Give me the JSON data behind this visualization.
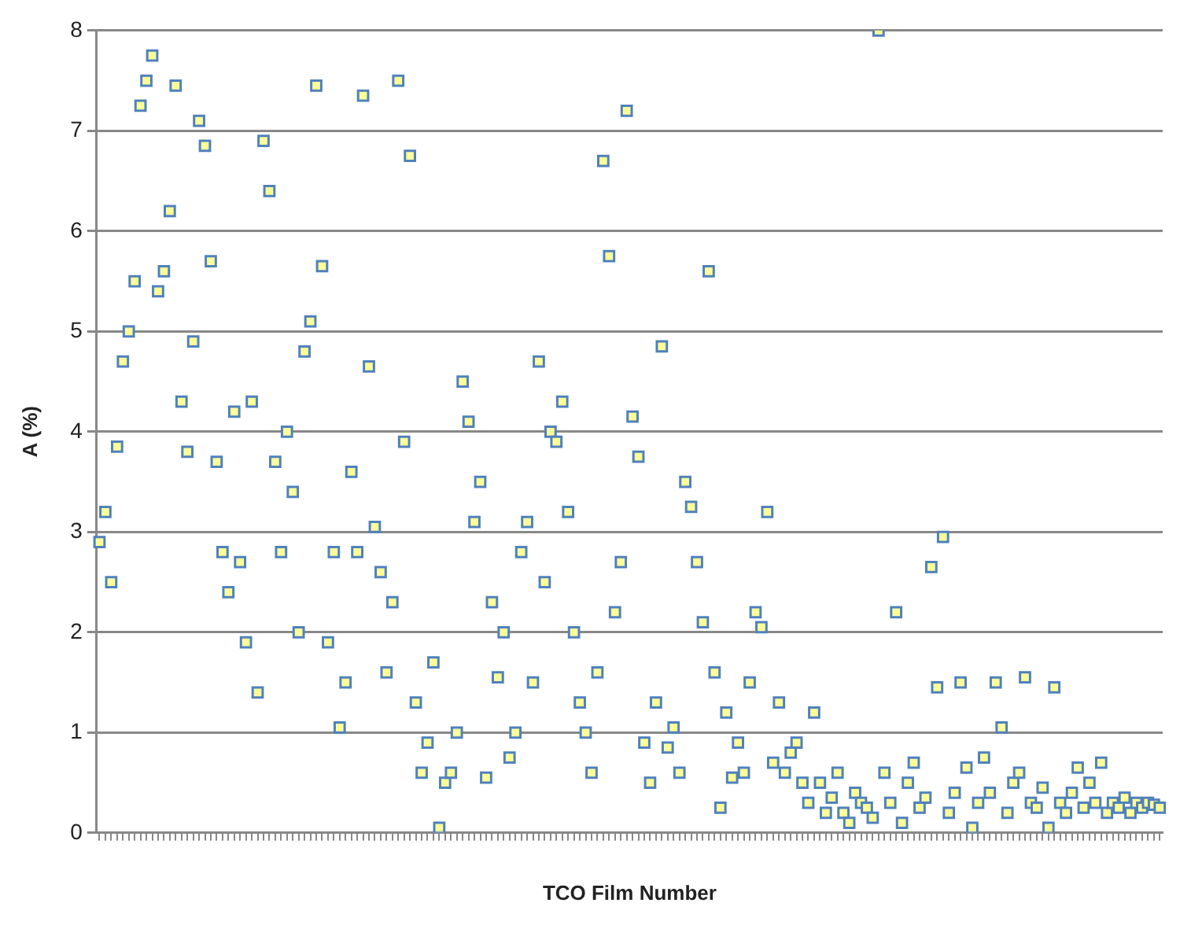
{
  "chart_data": {
    "type": "scatter",
    "xlabel": "TCO Film Number",
    "ylabel": "A (%)",
    "ylim": [
      0,
      8
    ],
    "yticks": [
      0,
      1,
      2,
      3,
      4,
      5,
      6,
      7,
      8
    ],
    "grid": "y",
    "legend": false,
    "marker": "square",
    "tick_labels": "y",
    "categories": [
      null,
      null,
      null,
      null,
      null,
      null,
      null,
      null,
      null,
      null,
      null,
      null,
      null,
      null,
      null,
      null,
      null,
      null,
      null,
      null,
      null,
      null,
      null,
      null,
      null,
      null,
      null,
      null,
      null,
      null,
      null,
      null,
      null,
      null,
      null,
      null,
      null,
      null,
      null,
      null,
      null,
      null,
      null,
      null,
      null,
      null,
      null,
      null,
      null,
      null,
      null,
      null,
      null,
      null,
      null,
      null,
      null,
      null,
      null,
      null,
      null,
      null,
      null,
      null,
      null,
      null,
      null,
      null,
      null,
      null,
      null,
      null,
      null,
      null,
      null,
      null,
      null,
      null,
      null,
      null,
      null,
      null,
      null,
      null,
      null,
      null,
      null,
      null,
      null,
      null,
      null,
      null,
      null,
      null,
      null,
      null,
      null,
      null,
      null,
      null,
      null,
      null,
      null,
      null,
      null,
      null,
      null,
      null,
      null,
      null,
      null,
      null,
      null,
      null,
      null,
      null,
      null,
      null,
      null,
      null,
      null,
      null,
      null,
      null,
      null,
      null,
      null,
      null,
      null,
      null,
      null,
      null,
      null,
      null,
      null,
      null,
      null,
      null,
      null,
      null,
      null,
      null,
      null,
      null,
      null,
      null,
      null,
      null,
      null,
      null,
      null,
      null,
      null,
      null,
      null,
      null,
      null,
      null,
      null,
      null,
      null,
      null,
      null,
      null,
      null,
      null,
      null,
      null,
      null,
      null,
      null,
      null,
      null,
      null,
      null,
      null,
      null,
      null,
      null,
      null,
      null,
      null
    ],
    "series": [
      {
        "color": "#ffff99",
        "values": [
          2.9,
          3.2,
          2.5,
          3.85,
          4.7,
          5.0,
          5.5,
          7.25,
          7.5,
          7.75,
          5.4,
          5.6,
          6.2,
          7.45,
          4.3,
          3.8,
          4.9,
          7.1,
          6.85,
          5.7,
          3.7,
          2.8,
          2.4,
          4.2,
          2.7,
          1.9,
          4.3,
          1.4,
          6.9,
          6.4,
          3.7,
          2.8,
          4.0,
          3.4,
          2.0,
          4.8,
          5.1,
          7.45,
          5.65,
          1.9,
          2.8,
          1.05,
          1.5,
          3.6,
          2.8,
          7.35,
          4.65,
          3.05,
          2.6,
          1.6,
          2.3,
          7.5,
          3.9,
          6.75,
          1.3,
          0.6,
          0.9,
          1.7,
          0.05,
          0.5,
          0.6,
          1.0,
          4.5,
          4.1,
          3.1,
          3.5,
          0.55,
          2.3,
          1.55,
          2.0,
          0.75,
          1.0,
          2.8,
          3.1,
          1.5,
          4.7,
          2.5,
          4.0,
          3.9,
          4.3,
          3.2,
          2.0,
          1.3,
          1.0,
          0.6,
          1.6,
          6.7,
          5.75,
          2.2,
          2.7,
          7.2,
          4.15,
          3.75,
          0.9,
          0.5,
          1.3,
          4.85,
          0.85,
          1.05,
          0.6,
          3.5,
          3.25,
          2.7,
          2.1,
          5.6,
          1.6,
          0.25,
          1.2,
          0.55,
          0.9,
          0.6,
          1.5,
          2.2,
          2.05,
          3.2,
          0.7,
          1.3,
          0.6,
          0.8,
          0.9,
          0.5,
          0.3,
          1.2,
          0.5,
          0.2,
          0.35,
          0.6,
          0.2,
          0.1,
          0.4,
          0.3,
          0.25,
          0.15,
          8.0,
          0.6,
          0.3,
          2.2,
          0.1,
          0.5,
          0.7,
          0.25,
          0.35,
          2.65,
          1.45,
          2.95,
          0.2,
          0.4,
          1.5,
          0.65,
          0.05,
          0.3,
          0.75,
          0.4,
          1.5,
          1.05,
          0.2,
          0.5,
          0.6,
          1.55,
          0.3,
          0.25,
          0.45,
          0.05,
          1.45,
          0.3,
          0.2,
          0.4,
          0.65,
          0.25,
          0.5,
          0.3,
          0.7,
          0.2,
          0.3,
          0.25,
          0.35,
          0.2,
          0.3,
          0.25,
          0.3,
          0.28,
          0.25
        ]
      }
    ]
  }
}
